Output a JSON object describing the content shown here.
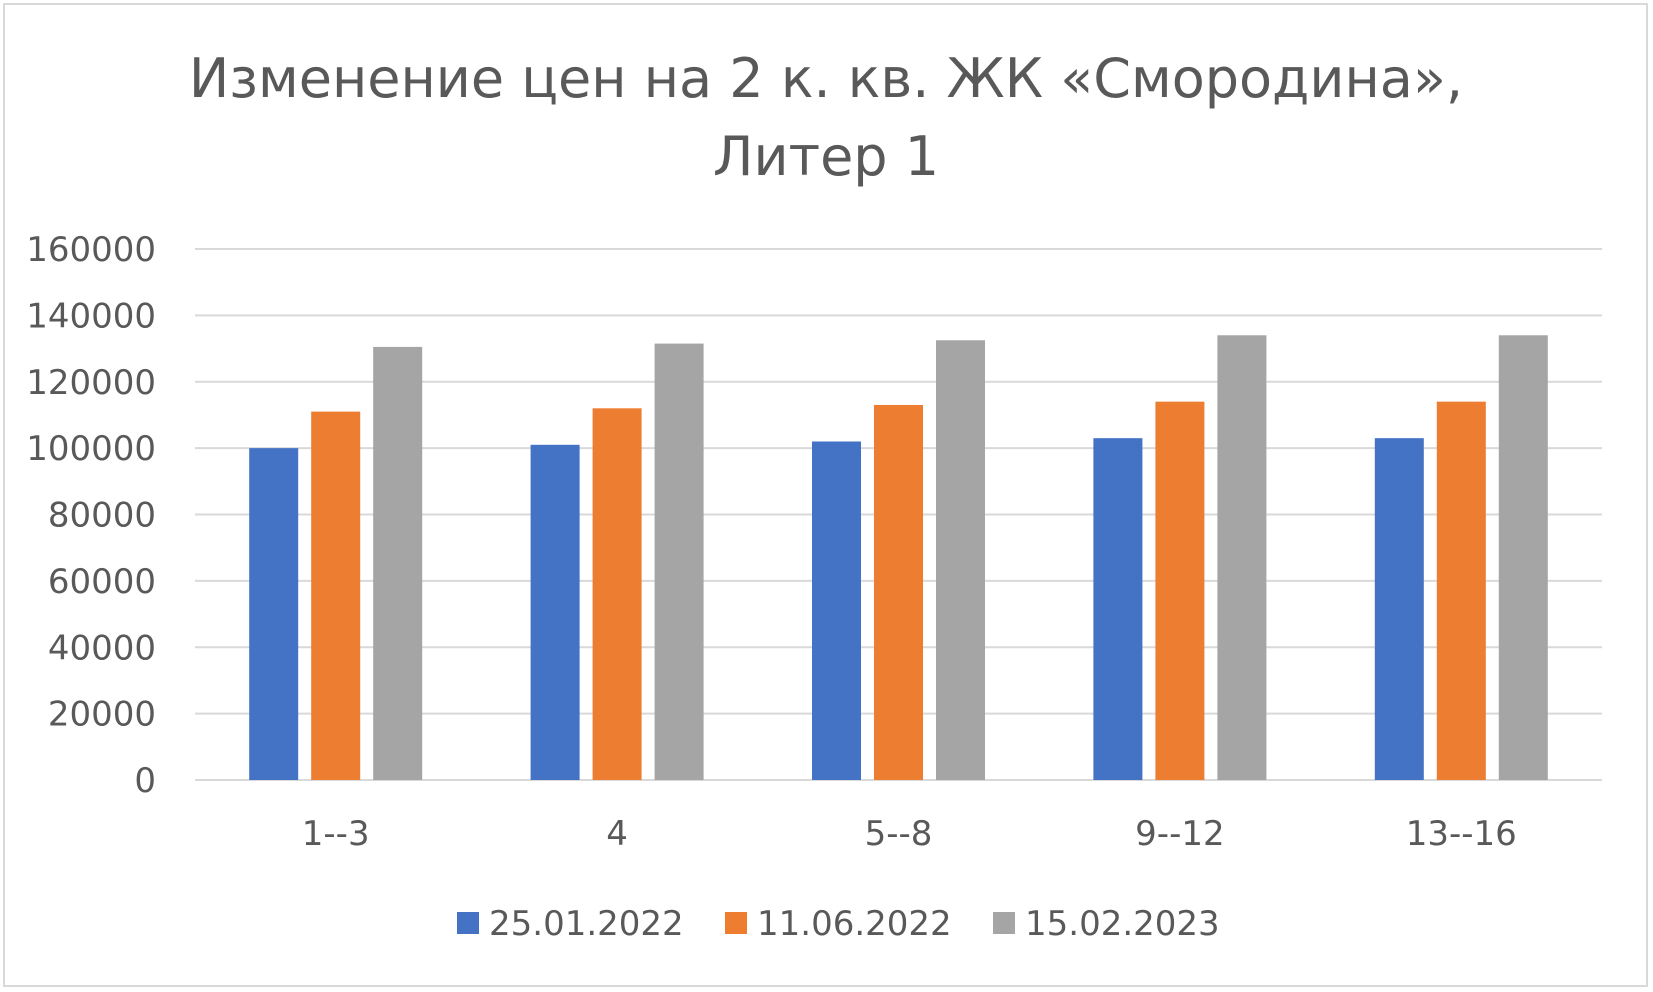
{
  "chart_data": {
    "type": "bar",
    "title_lines": [
      "Изменение цен на 2 к. кв. ЖК «Смородина»,",
      "Литер 1"
    ],
    "categories": [
      "1--3",
      "4",
      "5--8",
      "9--12",
      "13--16"
    ],
    "series": [
      {
        "name": "25.01.2022",
        "color": "#4472C4",
        "values": [
          100000,
          101000,
          102000,
          103000,
          103000
        ]
      },
      {
        "name": "11.06.2022",
        "color": "#ED7D31",
        "values": [
          111000,
          112000,
          113000,
          114000,
          114000
        ]
      },
      {
        "name": "15.02.2023",
        "color": "#A5A5A5",
        "values": [
          130500,
          131500,
          132500,
          134000,
          134000
        ]
      }
    ],
    "ylim": [
      0,
      160000
    ],
    "yticks": [
      0,
      20000,
      40000,
      60000,
      80000,
      100000,
      120000,
      140000,
      160000
    ],
    "grid": true,
    "legend_position": "bottom",
    "gridline_color": "#d9d9d9"
  }
}
